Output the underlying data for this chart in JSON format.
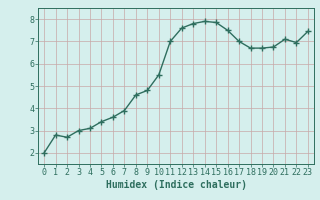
{
  "x": [
    0,
    1,
    2,
    3,
    4,
    5,
    6,
    7,
    8,
    9,
    10,
    11,
    12,
    13,
    14,
    15,
    16,
    17,
    18,
    19,
    20,
    21,
    22,
    23
  ],
  "y": [
    2.0,
    2.8,
    2.7,
    3.0,
    3.1,
    3.4,
    3.6,
    3.9,
    4.6,
    4.8,
    5.5,
    7.0,
    7.6,
    7.8,
    7.9,
    7.85,
    7.5,
    7.0,
    6.7,
    6.7,
    6.75,
    7.1,
    6.95,
    7.45
  ],
  "line_color": "#2e6e5e",
  "marker": "+",
  "marker_size": 4,
  "linewidth": 1.0,
  "xlabel": "Humidex (Indice chaleur)",
  "xlim": [
    -0.5,
    23.5
  ],
  "ylim": [
    1.5,
    8.5
  ],
  "yticks": [
    2,
    3,
    4,
    5,
    6,
    7,
    8
  ],
  "xticks": [
    0,
    1,
    2,
    3,
    4,
    5,
    6,
    7,
    8,
    9,
    10,
    11,
    12,
    13,
    14,
    15,
    16,
    17,
    18,
    19,
    20,
    21,
    22,
    23
  ],
  "bg_color": "#d5efed",
  "grid_color": "#c8a8a8",
  "xlabel_fontsize": 7,
  "tick_fontsize": 6
}
